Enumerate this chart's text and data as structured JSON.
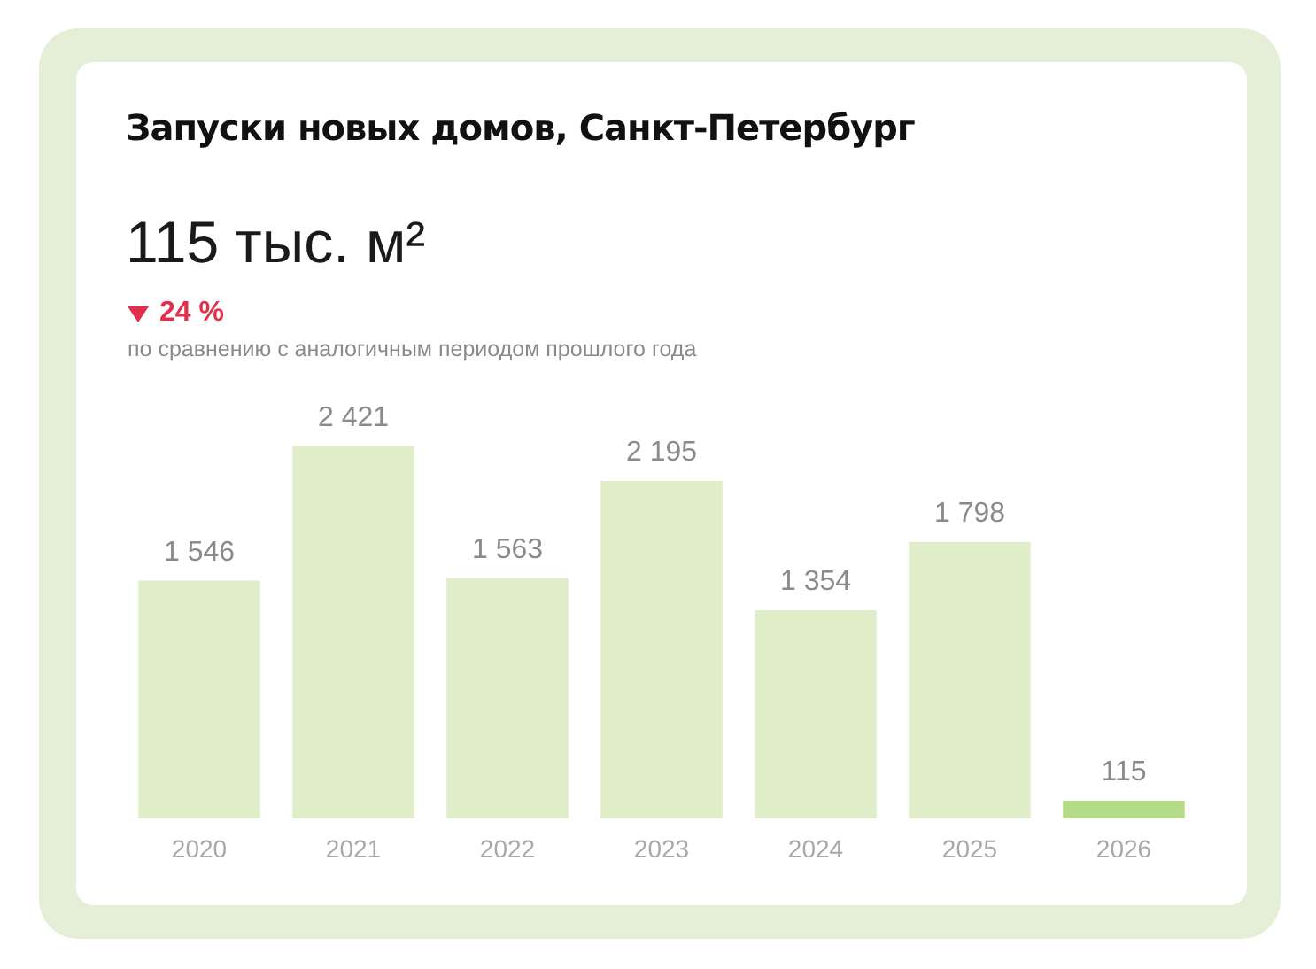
{
  "chart_data": {
    "type": "bar",
    "title": "Запуски новых домов, Санкт-Петербург",
    "subtitle": "115 тыс. м²",
    "annotations": [
      "24 %",
      "по сравнению с аналогичным периодом прошлого года"
    ],
    "categories": [
      "2020",
      "2021",
      "2022",
      "2023",
      "2024",
      "2025",
      "2026"
    ],
    "values": [
      1546,
      2421,
      1563,
      2195,
      1354,
      1798,
      115
    ],
    "colors": [
      "#dfedc8",
      "#dfedc8",
      "#dfedc8",
      "#dfedc8",
      "#dfedc8",
      "#dfedc8",
      "#b4db86"
    ],
    "value_labels": [
      "1 546",
      "2 421",
      "1 563",
      "2 195",
      "1 354",
      "1 798",
      "115"
    ]
  }
}
